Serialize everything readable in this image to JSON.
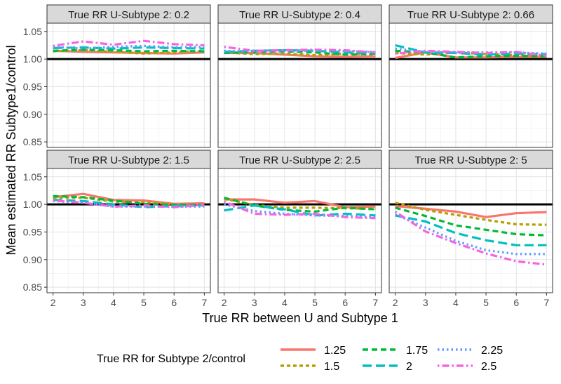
{
  "chart_data": {
    "type": "line",
    "facet_rows": 2,
    "facet_cols": 3,
    "xlabel": "True RR between U and Subtype 1",
    "ylabel": "Mean estimated RR Subtype1/control",
    "x": [
      2,
      3,
      4,
      5,
      6,
      7
    ],
    "xlim": [
      1.8,
      7.2
    ],
    "ylim": [
      0.84,
      1.065
    ],
    "x_ticks": [
      2,
      3,
      4,
      5,
      6,
      7
    ],
    "y_ticks": [
      0.85,
      0.9,
      0.95,
      1.0,
      1.05
    ],
    "y_tick_labels": [
      "0.85",
      "0.90",
      "0.95",
      "1.00",
      "1.05"
    ],
    "reference_line": 1.0,
    "legend": {
      "title": "True RR for Subtype 2/control",
      "position": "bottom"
    },
    "series_styles": [
      {
        "name": "1.25",
        "color": "#F8766D",
        "dash": "solid"
      },
      {
        "name": "1.5",
        "color": "#B79F00",
        "dash": "dotted"
      },
      {
        "name": "1.75",
        "color": "#00BA38",
        "dash": "dashed"
      },
      {
        "name": "2",
        "color": "#00BFC4",
        "dash": "longdash"
      },
      {
        "name": "2.25",
        "color": "#619CFF",
        "dash": "dot"
      },
      {
        "name": "2.5",
        "color": "#F564E3",
        "dash": "dotdash"
      }
    ],
    "panels": [
      {
        "title": "True RR U-Subtype 2: 0.2",
        "series": [
          {
            "name": "1.25",
            "values": [
              1.015,
              1.013,
              1.012,
              1.011,
              1.01,
              1.012
            ]
          },
          {
            "name": "1.5",
            "values": [
              1.014,
              1.016,
              1.013,
              1.01,
              1.012,
              1.015
            ]
          },
          {
            "name": "1.75",
            "values": [
              1.015,
              1.017,
              1.016,
              1.014,
              1.015,
              1.014
            ]
          },
          {
            "name": "2",
            "values": [
              1.02,
              1.021,
              1.019,
              1.021,
              1.02,
              1.019
            ]
          },
          {
            "name": "2.25",
            "values": [
              1.022,
              1.019,
              1.022,
              1.024,
              1.021,
              1.022
            ]
          },
          {
            "name": "2.5",
            "values": [
              1.024,
              1.032,
              1.026,
              1.033,
              1.027,
              1.025
            ]
          }
        ]
      },
      {
        "title": "True RR U-Subtype 2: 0.4",
        "series": [
          {
            "name": "1.25",
            "values": [
              1.011,
              1.011,
              1.008,
              1.005,
              1.004,
              1.005
            ]
          },
          {
            "name": "1.5",
            "values": [
              1.012,
              1.009,
              1.01,
              1.007,
              1.01,
              1.008
            ]
          },
          {
            "name": "1.75",
            "values": [
              1.011,
              1.013,
              1.014,
              1.012,
              1.008,
              1.01
            ]
          },
          {
            "name": "2",
            "values": [
              1.013,
              1.015,
              1.016,
              1.015,
              1.012,
              1.011
            ]
          },
          {
            "name": "2.25",
            "values": [
              1.015,
              1.013,
              1.014,
              1.016,
              1.014,
              1.013
            ]
          },
          {
            "name": "2.5",
            "values": [
              1.022,
              1.015,
              1.016,
              1.017,
              1.016,
              1.012
            ]
          }
        ]
      },
      {
        "title": "True RR U-Subtype 2: 0.66",
        "series": [
          {
            "name": "1.25",
            "values": [
              1.002,
              1.012,
              1.003,
              1.003,
              1.004,
              1.004
            ]
          },
          {
            "name": "1.5",
            "values": [
              1.011,
              1.008,
              1.012,
              1.009,
              1.007,
              1.006
            ]
          },
          {
            "name": "1.75",
            "values": [
              1.015,
              1.012,
              1.003,
              1.005,
              1.006,
              1.005
            ]
          },
          {
            "name": "2",
            "values": [
              1.025,
              1.012,
              1.011,
              1.008,
              1.01,
              1.009
            ]
          },
          {
            "name": "2.25",
            "values": [
              1.019,
              1.013,
              1.012,
              1.012,
              1.012,
              1.01
            ]
          },
          {
            "name": "2.5",
            "values": [
              1.01,
              1.015,
              1.013,
              1.011,
              1.013,
              1.006
            ]
          }
        ]
      },
      {
        "title": "True RR U-Subtype 2: 1.5",
        "series": [
          {
            "name": "1.25",
            "values": [
              1.013,
              1.019,
              1.008,
              1.007,
              1.001,
              1.002
            ]
          },
          {
            "name": "1.5",
            "values": [
              1.012,
              1.012,
              1.005,
              1.004,
              1.0,
              0.999
            ]
          },
          {
            "name": "1.75",
            "values": [
              1.015,
              1.013,
              1.007,
              1.001,
              0.999,
              0.999
            ]
          },
          {
            "name": "2",
            "values": [
              1.008,
              1.006,
              1.0,
              0.995,
              0.997,
              0.998
            ]
          },
          {
            "name": "2.25",
            "values": [
              1.006,
              1.003,
              0.996,
              0.996,
              0.996,
              0.996
            ]
          },
          {
            "name": "2.5",
            "values": [
              1.007,
              1.003,
              0.996,
              0.998,
              0.995,
              0.999
            ]
          }
        ]
      },
      {
        "title": "True RR U-Subtype 2: 2.5",
        "series": [
          {
            "name": "1.25",
            "values": [
              1.009,
              1.009,
              1.003,
              1.006,
              0.995,
              0.996
            ]
          },
          {
            "name": "1.5",
            "values": [
              1.01,
              0.999,
              0.994,
              0.994,
              0.993,
              0.992
            ]
          },
          {
            "name": "1.75",
            "values": [
              1.012,
              0.998,
              0.99,
              0.987,
              0.994,
              0.991
            ]
          },
          {
            "name": "2",
            "values": [
              0.989,
              0.998,
              0.991,
              0.98,
              0.983,
              0.98
            ]
          },
          {
            "name": "2.25",
            "values": [
              1.0,
              0.988,
              0.983,
              0.98,
              0.979,
              0.977
            ]
          },
          {
            "name": "2.5",
            "values": [
              1.005,
              0.983,
              0.981,
              0.983,
              0.977,
              0.975
            ]
          }
        ]
      },
      {
        "title": "True RR U-Subtype 2: 5",
        "series": [
          {
            "name": "1.25",
            "values": [
              0.997,
              0.992,
              0.987,
              0.977,
              0.984,
              0.986
            ]
          },
          {
            "name": "1.5",
            "values": [
              1.003,
              0.99,
              0.981,
              0.972,
              0.964,
              0.963
            ]
          },
          {
            "name": "1.75",
            "values": [
              0.994,
              0.979,
              0.962,
              0.954,
              0.946,
              0.944
            ]
          },
          {
            "name": "2",
            "values": [
              0.98,
              0.969,
              0.948,
              0.935,
              0.926,
              0.926
            ]
          },
          {
            "name": "2.25",
            "values": [
              0.982,
              0.958,
              0.934,
              0.917,
              0.91,
              0.91
            ]
          },
          {
            "name": "2.5",
            "values": [
              0.987,
              0.951,
              0.93,
              0.911,
              0.897,
              0.891
            ]
          }
        ]
      }
    ]
  }
}
